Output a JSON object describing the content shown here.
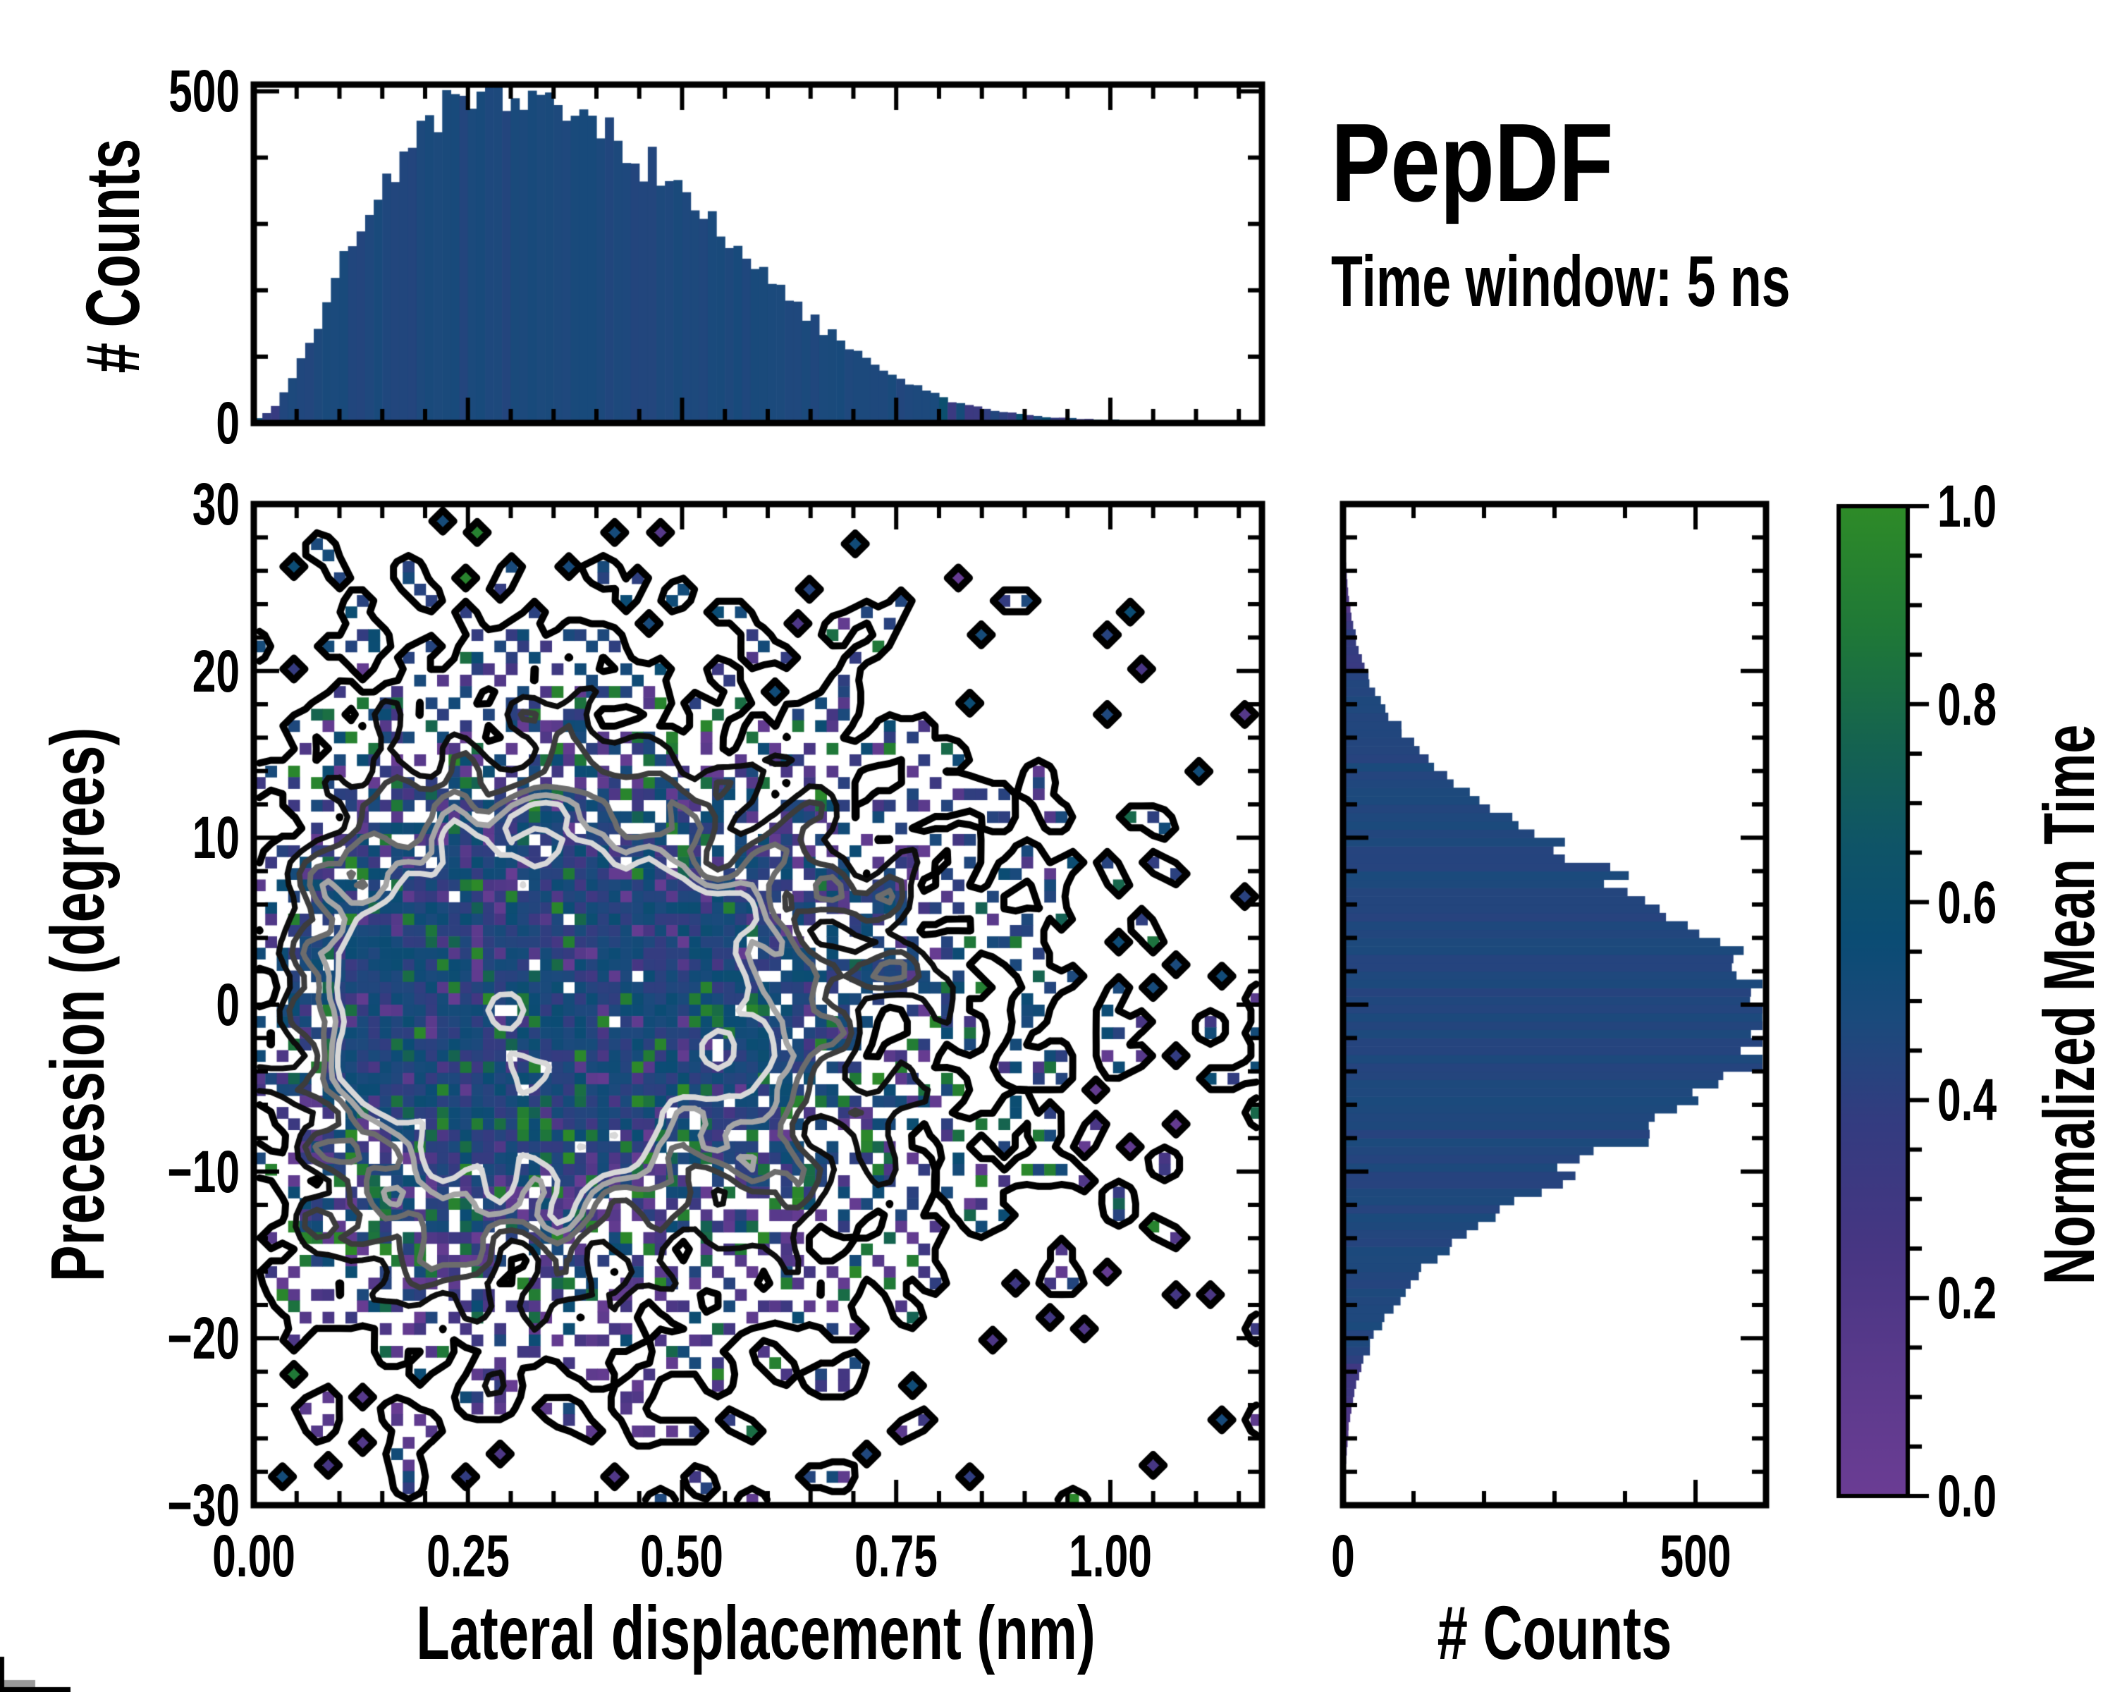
{
  "title": {
    "text": "PepDF",
    "subtitle": "Time window: 5 ns"
  },
  "axes": {
    "top_ylabel": "# Counts",
    "top_yticks": [
      "500",
      "0"
    ],
    "main_xlabel": "Lateral displacement (nm)",
    "main_ylabel": "Precession (degrees)",
    "main_xticks": [
      "0.00",
      "0.25",
      "0.50",
      "0.75",
      "1.00"
    ],
    "main_yticks": [
      "30",
      "20",
      "10",
      "0",
      "−10",
      "−20",
      "−30"
    ],
    "right_xlabel": "# Counts",
    "right_xticks": [
      "0",
      "500"
    ]
  },
  "colorbar": {
    "label": "Normalized Mean Time",
    "ticks": [
      "1.0",
      "0.8",
      "0.6",
      "0.4",
      "0.2",
      "0.0"
    ],
    "tick_values": [
      1.0,
      0.8,
      0.6,
      0.4,
      0.2,
      0.0
    ],
    "stops": [
      [
        0.0,
        "#6B3D94"
      ],
      [
        0.12,
        "#5B3A8C"
      ],
      [
        0.25,
        "#473683"
      ],
      [
        0.38,
        "#333C80"
      ],
      [
        0.48,
        "#1B4A7C"
      ],
      [
        0.56,
        "#0B4C74"
      ],
      [
        0.66,
        "#0F5567"
      ],
      [
        0.76,
        "#156350"
      ],
      [
        0.87,
        "#1F7838"
      ],
      [
        1.0,
        "#2E8B28"
      ]
    ]
  },
  "style": {
    "frame_color": "#000000",
    "bar_blue": "#16507C",
    "contour_outer": {
      "level": 0.13,
      "color": "#000000",
      "width": 10
    },
    "contour_inner": [
      [
        0.45,
        "#0d0d0d"
      ],
      [
        0.6,
        "#3c3c3c"
      ],
      [
        0.72,
        "#6c6c6c"
      ],
      [
        0.82,
        "#a5a5a5"
      ],
      [
        0.9,
        "#d8d8d8"
      ]
    ],
    "contour_inner_width": 8
  },
  "chart_data": [
    {
      "type": "bar",
      "role": "marginal-x-histogram",
      "orientation": "vertical",
      "ylabel": "# Counts",
      "xlim": [
        0,
        1.177
      ],
      "ylim": [
        0,
        510
      ],
      "yticks": [
        0,
        500
      ],
      "bin_start": 0.005,
      "bin_step": 0.01,
      "values": [
        8,
        15,
        25,
        45,
        70,
        95,
        120,
        150,
        185,
        215,
        245,
        270,
        295,
        318,
        340,
        362,
        382,
        400,
        416,
        430,
        443,
        454,
        463,
        470,
        476,
        481,
        485,
        488,
        490,
        492,
        491,
        489,
        486,
        482,
        478,
        473,
        468,
        462,
        455,
        448,
        441,
        433,
        424,
        415,
        405,
        395,
        384,
        373,
        361,
        349,
        337,
        325,
        312,
        300,
        287,
        274,
        261,
        248,
        236,
        223,
        211,
        199,
        187,
        175,
        164,
        153,
        142,
        132,
        122,
        113,
        104,
        95,
        87,
        80,
        72,
        66,
        59,
        53,
        48,
        43,
        38,
        34,
        30,
        27,
        24,
        21,
        19,
        17,
        15,
        13,
        12,
        10,
        9,
        8,
        8,
        7,
        6,
        6,
        5,
        5,
        5,
        4,
        4,
        4,
        3,
        3,
        3,
        3,
        2,
        2,
        2,
        2,
        2,
        1,
        1,
        1,
        1
      ],
      "noise": 0.07,
      "seed": 7
    },
    {
      "type": "heatmap",
      "role": "joint-distribution",
      "xlabel": "Lateral displacement (nm)",
      "ylabel": "Precession (degrees)",
      "xlim": [
        0,
        1.177
      ],
      "ylim": [
        -30,
        30
      ],
      "xticks": [
        0,
        0.25,
        0.5,
        0.75,
        1.0
      ],
      "yticks": [
        30,
        20,
        10,
        0,
        -10,
        -20,
        -30
      ],
      "grid": [
        88,
        88
      ],
      "color_scale": {
        "label": "Normalized Mean Time",
        "range": [
          0,
          1
        ]
      },
      "density": "separable product of the two marginal histograms",
      "fill_p": {
        "max": 0.97,
        "gain": 1.35,
        "exp": 0.55
      },
      "value_mix": {
        "blue_base": [
          0.36,
          0.22
        ],
        "green": [
          0.74,
          0.26
        ],
        "purple": [
          0.03,
          0.3
        ]
      },
      "contours": "nested density contours, black (outer) to near-white (inner)",
      "seed": 20250
    },
    {
      "type": "bar",
      "role": "marginal-y-histogram",
      "orientation": "horizontal",
      "xlabel": "# Counts",
      "ylim": [
        -30,
        30
      ],
      "xlim": [
        0,
        600
      ],
      "xticks": [
        0,
        500
      ],
      "bin_start": -30,
      "bin_step": 1,
      "values": [
        2,
        2,
        3,
        5,
        7,
        9,
        13,
        18,
        24,
        33,
        43,
        56,
        72,
        91,
        114,
        140,
        170,
        204,
        240,
        280,
        321,
        364,
        407,
        448,
        487,
        521,
        551,
        575,
        591,
        599,
        599,
        591,
        575,
        551,
        521,
        487,
        448,
        407,
        364,
        321,
        280,
        240,
        204,
        170,
        140,
        114,
        91,
        72,
        56,
        43,
        33,
        24,
        18,
        13,
        9,
        7,
        5,
        3,
        2,
        2,
        2
      ],
      "render_bins": 120,
      "noise": 0.07,
      "seed": 13
    }
  ]
}
